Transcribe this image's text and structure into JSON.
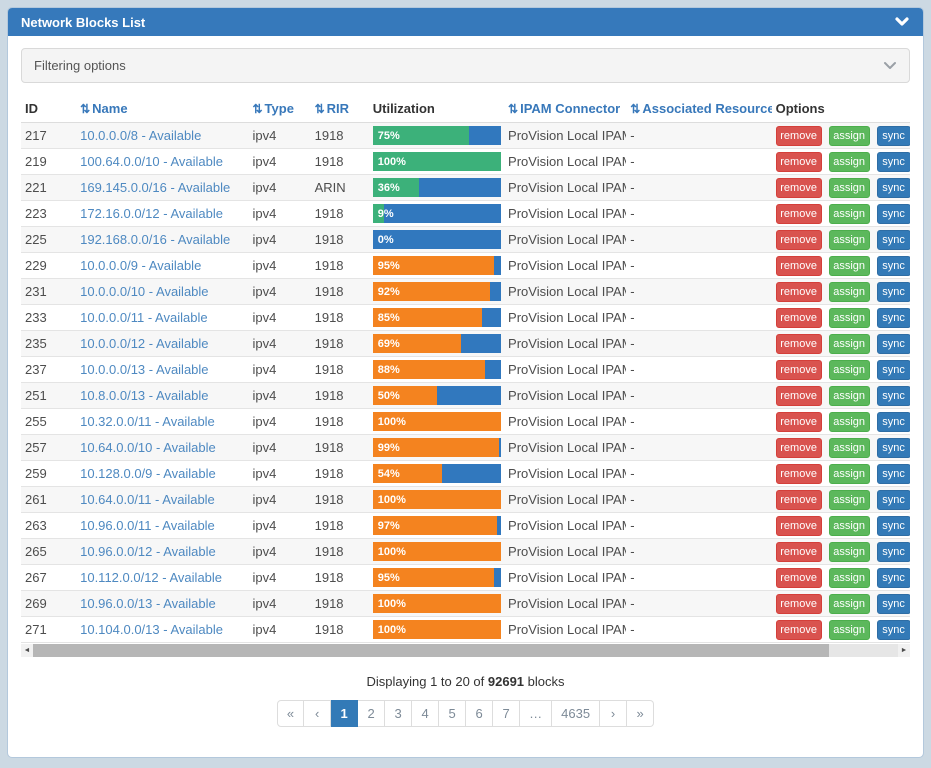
{
  "panel": {
    "title": "Network Blocks List"
  },
  "filter": {
    "label": "Filtering options"
  },
  "icons": {
    "sort": "⇅",
    "scroll_left": "◄",
    "scroll_right": "►"
  },
  "colors": {
    "panel_header_blue": "#3679bb",
    "bar_background_blue": "#3178be",
    "bar_green": "#3cb17a",
    "bar_orange": "#f4831f",
    "remove_red": "#d9534f",
    "assign_green": "#5cb85c",
    "sync_blue": "#337ab7",
    "link_blue": "#4e89c1",
    "pagination_active_blue": "#337ab7"
  },
  "table": {
    "columns": [
      {
        "key": "id",
        "label": "ID",
        "sortable": false
      },
      {
        "key": "name",
        "label": "Name",
        "sortable": true
      },
      {
        "key": "type",
        "label": "Type",
        "sortable": true
      },
      {
        "key": "rir",
        "label": "RIR",
        "sortable": true
      },
      {
        "key": "util",
        "label": "Utilization",
        "sortable": false
      },
      {
        "key": "ipam",
        "label": "IPAM Connector",
        "sortable": true
      },
      {
        "key": "assoc",
        "label": "Associated Resources",
        "sortable": true
      },
      {
        "key": "opts",
        "label": "Options",
        "sortable": false
      }
    ],
    "options_buttons": [
      "remove",
      "assign",
      "sync"
    ],
    "rows": [
      {
        "id": "217",
        "name": "10.0.0.0/8 - Available",
        "type": "ipv4",
        "rir": "1918",
        "utilization_pct": 75,
        "bar_color": "green",
        "ipam_connector": "ProVision Local IPAM",
        "associated_resources": "-"
      },
      {
        "id": "219",
        "name": "100.64.0.0/10 - Available",
        "type": "ipv4",
        "rir": "1918",
        "utilization_pct": 100,
        "bar_color": "green",
        "ipam_connector": "ProVision Local IPAM",
        "associated_resources": "-"
      },
      {
        "id": "221",
        "name": "169.145.0.0/16 - Available",
        "type": "ipv4",
        "rir": "ARIN",
        "utilization_pct": 36,
        "bar_color": "green",
        "ipam_connector": "ProVision Local IPAM",
        "associated_resources": "-"
      },
      {
        "id": "223",
        "name": "172.16.0.0/12 - Available",
        "type": "ipv4",
        "rir": "1918",
        "utilization_pct": 9,
        "bar_color": "green",
        "ipam_connector": "ProVision Local IPAM",
        "associated_resources": "-"
      },
      {
        "id": "225",
        "name": "192.168.0.0/16 - Available",
        "type": "ipv4",
        "rir": "1918",
        "utilization_pct": 0,
        "bar_color": "green",
        "ipam_connector": "ProVision Local IPAM",
        "associated_resources": "-"
      },
      {
        "id": "229",
        "name": "10.0.0.0/9 - Available",
        "type": "ipv4",
        "rir": "1918",
        "utilization_pct": 95,
        "bar_color": "orange",
        "ipam_connector": "ProVision Local IPAM",
        "associated_resources": "-"
      },
      {
        "id": "231",
        "name": "10.0.0.0/10 - Available",
        "type": "ipv4",
        "rir": "1918",
        "utilization_pct": 92,
        "bar_color": "orange",
        "ipam_connector": "ProVision Local IPAM",
        "associated_resources": "-"
      },
      {
        "id": "233",
        "name": "10.0.0.0/11 - Available",
        "type": "ipv4",
        "rir": "1918",
        "utilization_pct": 85,
        "bar_color": "orange",
        "ipam_connector": "ProVision Local IPAM",
        "associated_resources": "-"
      },
      {
        "id": "235",
        "name": "10.0.0.0/12 - Available",
        "type": "ipv4",
        "rir": "1918",
        "utilization_pct": 69,
        "bar_color": "orange",
        "ipam_connector": "ProVision Local IPAM",
        "associated_resources": "-"
      },
      {
        "id": "237",
        "name": "10.0.0.0/13 - Available",
        "type": "ipv4",
        "rir": "1918",
        "utilization_pct": 88,
        "bar_color": "orange",
        "ipam_connector": "ProVision Local IPAM",
        "associated_resources": "-"
      },
      {
        "id": "251",
        "name": "10.8.0.0/13 - Available",
        "type": "ipv4",
        "rir": "1918",
        "utilization_pct": 50,
        "bar_color": "orange",
        "ipam_connector": "ProVision Local IPAM",
        "associated_resources": "-"
      },
      {
        "id": "255",
        "name": "10.32.0.0/11 - Available",
        "type": "ipv4",
        "rir": "1918",
        "utilization_pct": 100,
        "bar_color": "orange",
        "ipam_connector": "ProVision Local IPAM",
        "associated_resources": "-"
      },
      {
        "id": "257",
        "name": "10.64.0.0/10 - Available",
        "type": "ipv4",
        "rir": "1918",
        "utilization_pct": 99,
        "bar_color": "orange",
        "ipam_connector": "ProVision Local IPAM",
        "associated_resources": "-"
      },
      {
        "id": "259",
        "name": "10.128.0.0/9 - Available",
        "type": "ipv4",
        "rir": "1918",
        "utilization_pct": 54,
        "bar_color": "orange",
        "ipam_connector": "ProVision Local IPAM",
        "associated_resources": "-"
      },
      {
        "id": "261",
        "name": "10.64.0.0/11 - Available",
        "type": "ipv4",
        "rir": "1918",
        "utilization_pct": 100,
        "bar_color": "orange",
        "ipam_connector": "ProVision Local IPAM",
        "associated_resources": "-"
      },
      {
        "id": "263",
        "name": "10.96.0.0/11 - Available",
        "type": "ipv4",
        "rir": "1918",
        "utilization_pct": 97,
        "bar_color": "orange",
        "ipam_connector": "ProVision Local IPAM",
        "associated_resources": "-"
      },
      {
        "id": "265",
        "name": "10.96.0.0/12 - Available",
        "type": "ipv4",
        "rir": "1918",
        "utilization_pct": 100,
        "bar_color": "orange",
        "ipam_connector": "ProVision Local IPAM",
        "associated_resources": "-"
      },
      {
        "id": "267",
        "name": "10.112.0.0/12 - Available",
        "type": "ipv4",
        "rir": "1918",
        "utilization_pct": 95,
        "bar_color": "orange",
        "ipam_connector": "ProVision Local IPAM",
        "associated_resources": "-"
      },
      {
        "id": "269",
        "name": "10.96.0.0/13 - Available",
        "type": "ipv4",
        "rir": "1918",
        "utilization_pct": 100,
        "bar_color": "orange",
        "ipam_connector": "ProVision Local IPAM",
        "associated_resources": "-"
      },
      {
        "id": "271",
        "name": "10.104.0.0/13 - Available",
        "type": "ipv4",
        "rir": "1918",
        "utilization_pct": 100,
        "bar_color": "orange",
        "ipam_connector": "ProVision Local IPAM",
        "associated_resources": "-"
      }
    ]
  },
  "summary": {
    "prefix": "Displaying 1 to 20 of ",
    "total": "92691",
    "suffix": " blocks"
  },
  "pagination": {
    "items": [
      "«",
      "‹",
      "1",
      "2",
      "3",
      "4",
      "5",
      "6",
      "7",
      "…",
      "4635",
      "›",
      "»"
    ],
    "active": "1"
  }
}
